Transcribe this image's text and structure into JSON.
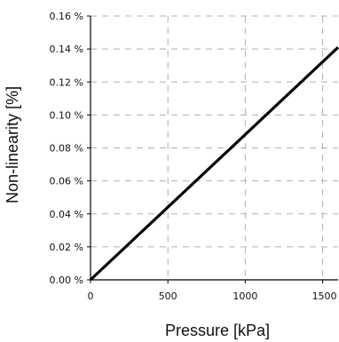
{
  "chart_data": {
    "type": "line",
    "title": "",
    "xlabel": "Pressure [kPa]",
    "ylabel": "Non-linearity [%]",
    "xlim": [
      0,
      1600
    ],
    "ylim": [
      0,
      0.16
    ],
    "grid": true,
    "grid_style": "dashed",
    "x_ticks": [
      0,
      500,
      1000,
      1500
    ],
    "x_tick_labels": [
      "0",
      "500",
      "1000",
      "1500"
    ],
    "y_ticks": [
      0,
      0.02,
      0.04,
      0.06,
      0.08,
      0.1,
      0.12,
      0.14,
      0.16
    ],
    "y_tick_labels": [
      "0.00 %",
      "0.02 %",
      "0.04 %",
      "0.06 %",
      "0.08 %",
      "0.10 %",
      "0.12 %",
      "0.14 %",
      "0.16 %"
    ],
    "series": [
      {
        "x": [
          0,
          1600
        ],
        "y": [
          0,
          0.141
        ]
      }
    ],
    "colors": {
      "line": "#000000",
      "axes": "#000000",
      "grid": "#b0b0b0",
      "text": "#111111"
    }
  }
}
